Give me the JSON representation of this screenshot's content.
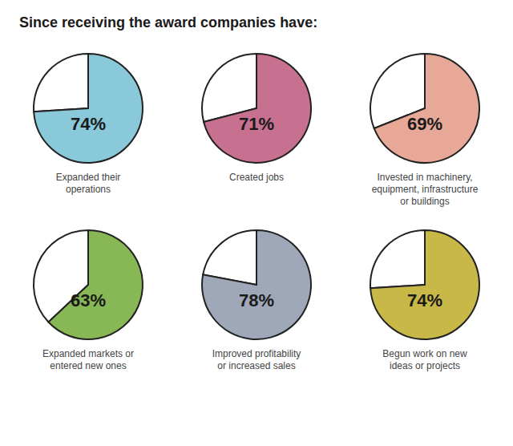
{
  "title": "Since receiving the award companies have:",
  "chart_data": [
    {
      "type": "pie",
      "title": "Expanded their\noperations",
      "values": [
        26,
        74
      ],
      "colors": [
        "#ffffff",
        "#89c9d9"
      ],
      "data_labels": true,
      "value_labels": [
        null,
        "74%"
      ]
    },
    {
      "type": "pie",
      "title": "Created jobs",
      "values": [
        29,
        71
      ],
      "colors": [
        "#ffffff",
        "#c87090"
      ],
      "data_labels": true,
      "value_labels": [
        null,
        "71%"
      ]
    },
    {
      "type": "pie",
      "title": "Invested in machinery,\nequipment, infrastructure\nor buildings",
      "values": [
        31,
        69
      ],
      "colors": [
        "#ffffff",
        "#e8a898"
      ],
      "data_labels": true,
      "value_labels": [
        null,
        "69%"
      ]
    },
    {
      "type": "pie",
      "title": "Expanded markets or\nentered new ones",
      "values": [
        37,
        63
      ],
      "colors": [
        "#ffffff",
        "#88b855"
      ],
      "data_labels": true,
      "value_labels": [
        null,
        "63%"
      ]
    },
    {
      "type": "pie",
      "title": "Improved profitability\nor increased sales",
      "values": [
        22,
        78
      ],
      "colors": [
        "#ffffff",
        "#9fa8b8"
      ],
      "data_labels": true,
      "value_labels": [
        null,
        "78%"
      ]
    },
    {
      "type": "pie",
      "title": "Begun work on new\nideas or projects",
      "values": [
        26,
        74
      ],
      "colors": [
        "#ffffff",
        "#c8b848"
      ],
      "data_labels": true,
      "value_labels": [
        null,
        "74%"
      ]
    }
  ]
}
